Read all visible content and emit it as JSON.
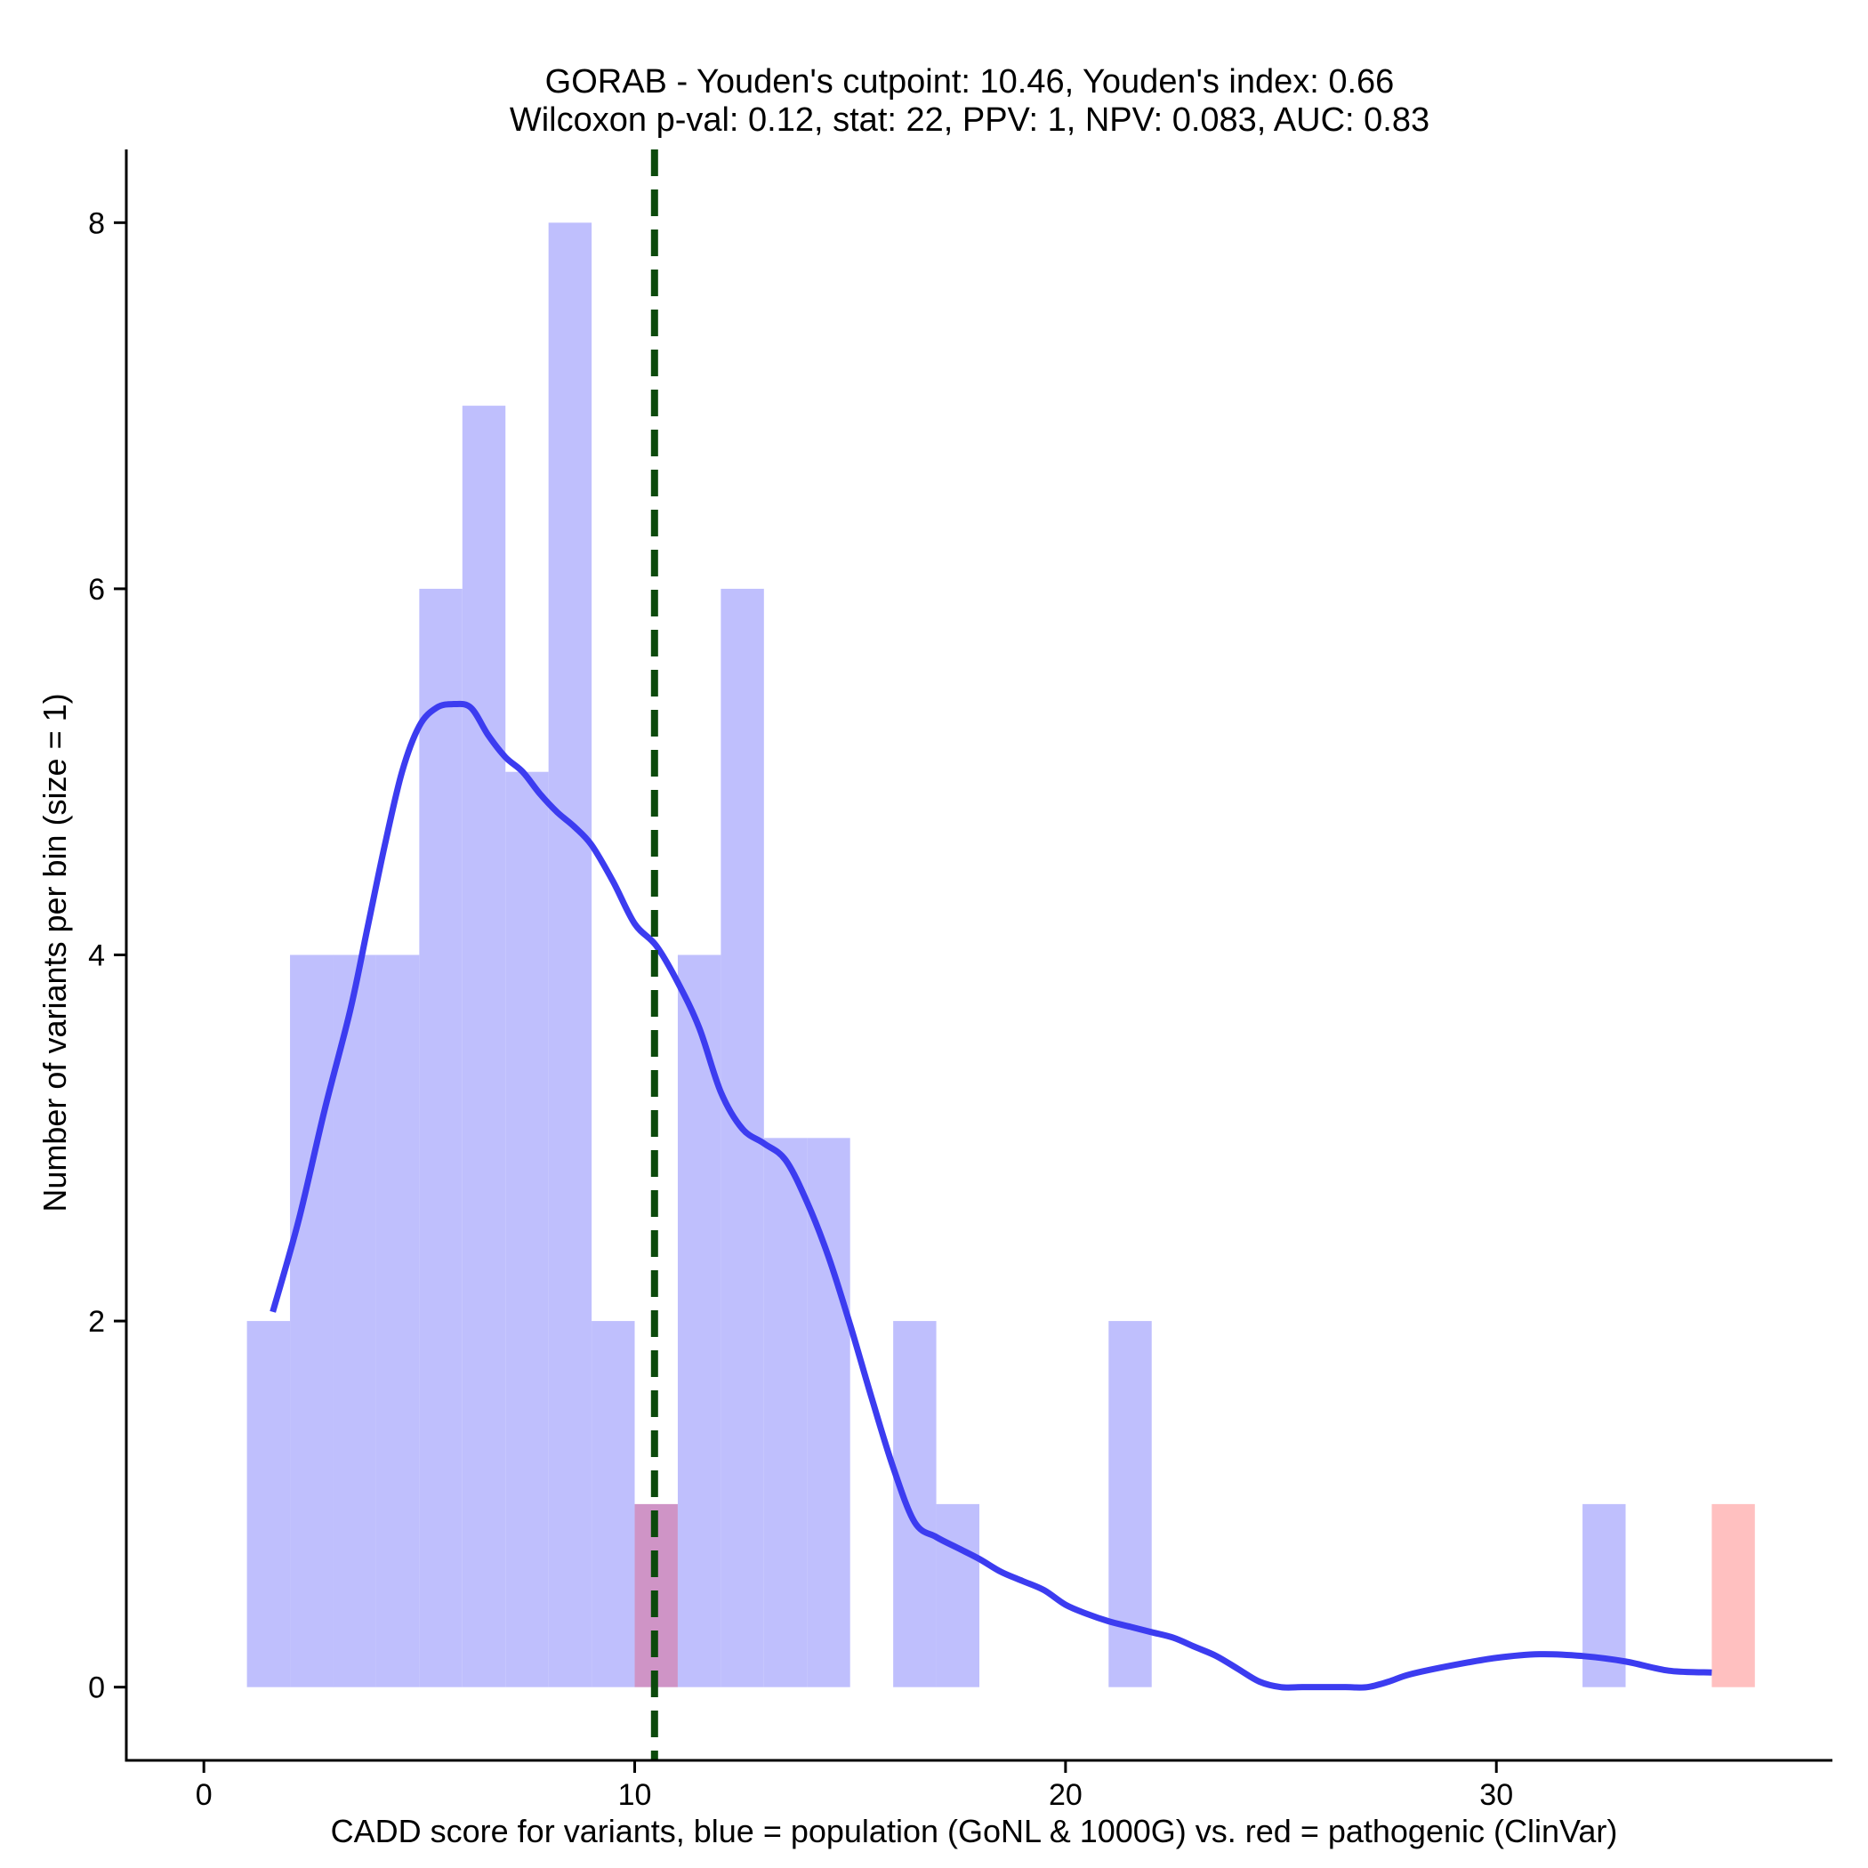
{
  "chart_data": {
    "type": "bar",
    "title": [
      "GORAB - Youden's cutpoint: 10.46, Youden's index: 0.66",
      "Wilcoxon p-val: 0.12, stat: 22, PPV: 1, NPV: 0.083, AUC: 0.83"
    ],
    "xlabel": "CADD score for variants, blue = population (GoNL & 1000G) vs. red = pathogenic (ClinVar)",
    "ylabel": "Number of variants per bin (size = 1)",
    "xlim": [
      -1.8,
      37.8
    ],
    "ylim": [
      -0.4,
      8.4
    ],
    "xticks": [
      0,
      10,
      20,
      30
    ],
    "yticks": [
      0,
      2,
      4,
      6,
      8
    ],
    "bin_width": 1,
    "grid": false,
    "colors": {
      "population": "#bfbffd",
      "pathogenic": "#ffc0c0",
      "overlap": "#cf94c6",
      "density": "#3c3cf0",
      "cutpoint": "#0c4a0c"
    },
    "series": [
      {
        "key": "population",
        "bins": [
          {
            "x0": 1,
            "count": 2
          },
          {
            "x0": 2,
            "count": 4
          },
          {
            "x0": 3,
            "count": 4
          },
          {
            "x0": 4,
            "count": 4
          },
          {
            "x0": 5,
            "count": 6
          },
          {
            "x0": 6,
            "count": 7
          },
          {
            "x0": 7,
            "count": 5
          },
          {
            "x0": 8,
            "count": 8
          },
          {
            "x0": 9,
            "count": 2
          },
          {
            "x0": 10,
            "count": 1
          },
          {
            "x0": 11,
            "count": 4
          },
          {
            "x0": 12,
            "count": 6
          },
          {
            "x0": 13,
            "count": 3
          },
          {
            "x0": 14,
            "count": 3
          },
          {
            "x0": 16,
            "count": 2
          },
          {
            "x0": 17,
            "count": 1
          },
          {
            "x0": 21,
            "count": 2
          },
          {
            "x0": 32,
            "count": 1
          }
        ]
      },
      {
        "key": "pathogenic",
        "bins": [
          {
            "x0": 10,
            "count": 1
          },
          {
            "x0": 35,
            "count": 1
          }
        ]
      }
    ],
    "density_curve": {
      "x": [
        1.6,
        2.2,
        2.8,
        3.4,
        3.8,
        4.2,
        4.6,
        5.0,
        5.4,
        5.8,
        6.2,
        6.6,
        7.0,
        7.4,
        7.8,
        8.2,
        8.6,
        9.0,
        9.5,
        10.0,
        10.5,
        11.0,
        11.5,
        12.0,
        12.5,
        13.0,
        13.5,
        14.0,
        14.5,
        15.0,
        15.5,
        16.0,
        16.5,
        17.0,
        17.5,
        18.0,
        18.5,
        19.0,
        19.5,
        20.0,
        20.5,
        21.0,
        21.5,
        22.0,
        22.5,
        23.0,
        23.5,
        24.0,
        24.5,
        25.0,
        25.5,
        26.0,
        26.5,
        27.0,
        27.5,
        28.0,
        29.0,
        30.0,
        31.0,
        32.0,
        33.0,
        34.0,
        35.0
      ],
      "y": [
        2.05,
        2.55,
        3.15,
        3.7,
        4.15,
        4.6,
        5.0,
        5.25,
        5.35,
        5.37,
        5.35,
        5.2,
        5.08,
        5.0,
        4.88,
        4.78,
        4.7,
        4.6,
        4.4,
        4.17,
        4.05,
        3.85,
        3.6,
        3.25,
        3.05,
        2.97,
        2.88,
        2.65,
        2.35,
        1.98,
        1.58,
        1.2,
        0.9,
        0.82,
        0.76,
        0.7,
        0.63,
        0.58,
        0.53,
        0.45,
        0.4,
        0.36,
        0.33,
        0.3,
        0.27,
        0.22,
        0.17,
        0.1,
        0.03,
        0.0,
        0.0,
        0.0,
        0.0,
        0.0,
        0.03,
        0.07,
        0.12,
        0.16,
        0.18,
        0.17,
        0.14,
        0.09,
        0.08
      ]
    },
    "cutpoint": 10.46
  }
}
